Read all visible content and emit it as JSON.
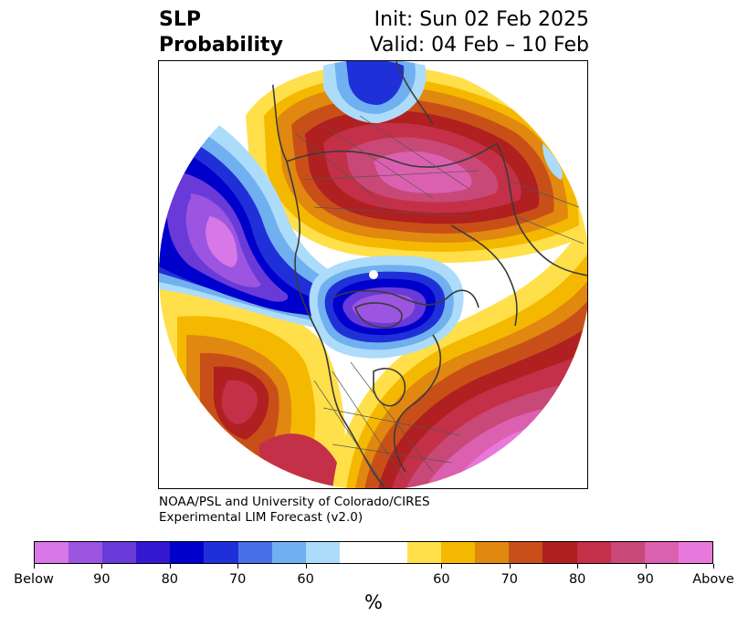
{
  "title": {
    "left_line1": "SLP",
    "left_line2": "Probability",
    "right_line1": "Init: Sun 02 Feb 2025",
    "right_line2": "Valid: 04 Feb – 10 Feb"
  },
  "credit": {
    "line1": "NOAA/PSL and University of Colorado/CIRES",
    "line2": "Experimental LIM Forecast (v2.0)"
  },
  "colorbar": {
    "colors": [
      "#d877e8",
      "#9b55e0",
      "#6a3ad8",
      "#3318d0",
      "#0000cc",
      "#2030d8",
      "#4a70e8",
      "#70b0f0",
      "#acdcfa",
      "#ffffff",
      "#ffffff",
      "#ffe04a",
      "#f5b800",
      "#e08810",
      "#c85018",
      "#b02020",
      "#c43048",
      "#c84878",
      "#dc60b0",
      "#e878dc"
    ],
    "tick_labels": [
      "Below",
      "90",
      "80",
      "70",
      "60",
      "60",
      "70",
      "80",
      "90",
      "Above"
    ],
    "unit": "%"
  },
  "map": {
    "projection": "north-polar-stereographic",
    "field": "SLP probability",
    "below_colors": {
      "lvl1": "#acdcfa",
      "lvl2": "#70b0f0",
      "lvl3": "#2030d8",
      "lvl4": "#0000cc",
      "lvl5": "#6a3ad8",
      "lvl6": "#9b55e0",
      "lvl7": "#d877e8"
    },
    "above_colors": {
      "lvl1": "#ffe04a",
      "lvl2": "#f5b800",
      "lvl3": "#e08810",
      "lvl4": "#c85018",
      "lvl5": "#b02020",
      "lvl6": "#c43048",
      "lvl7": "#c84878",
      "lvl8": "#dc60b0",
      "lvl9": "#e878dc"
    }
  }
}
